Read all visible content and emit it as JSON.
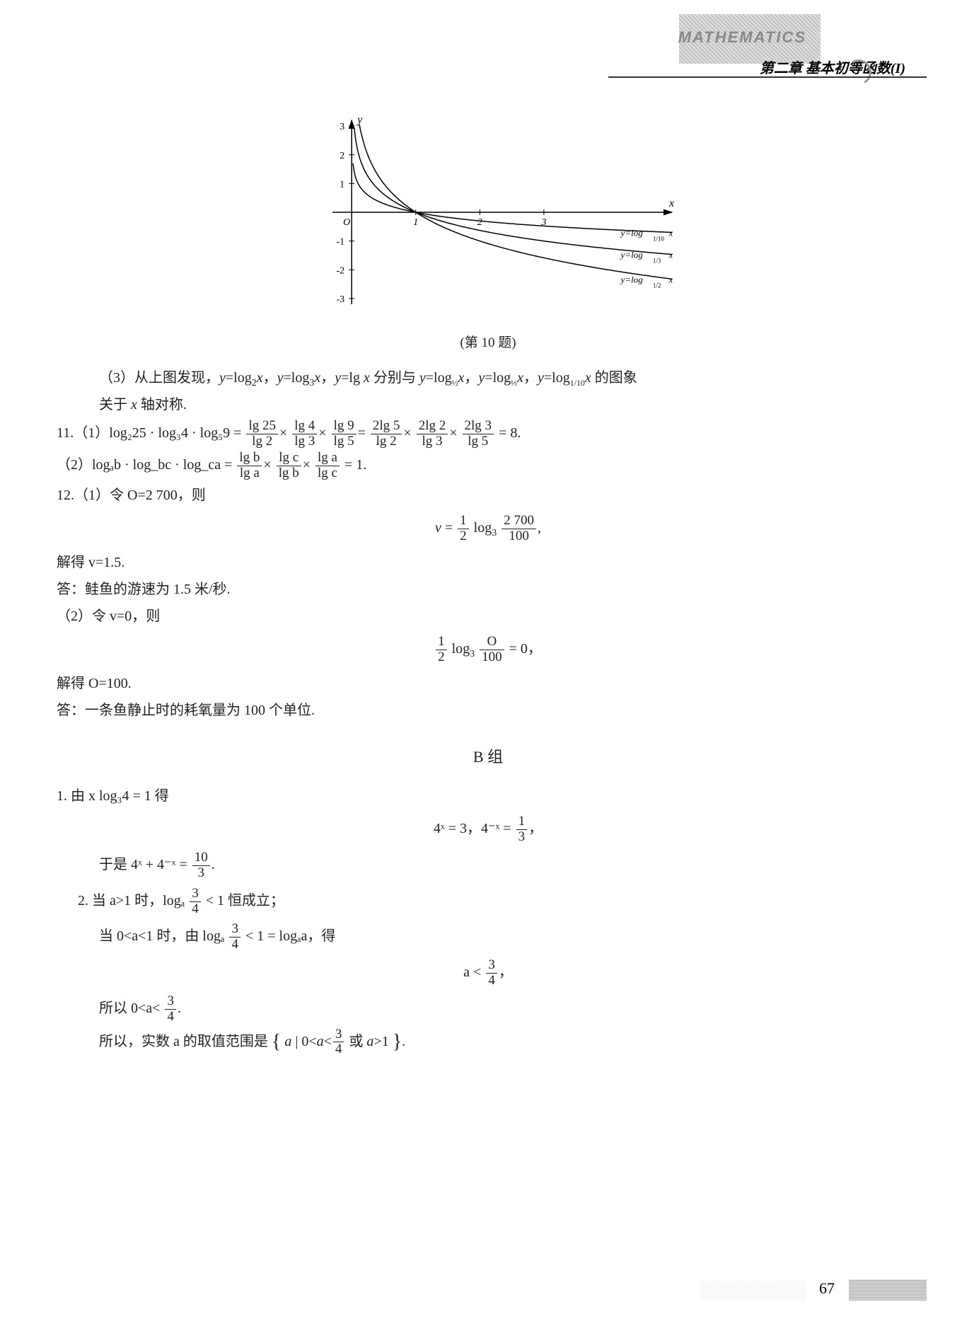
{
  "header": {
    "watermark": "MATHEMATICS",
    "chapter": "第二章  基本初等函数(I)"
  },
  "chart": {
    "type": "line",
    "caption": "(第 10 题)",
    "x_axis_label": "x",
    "y_axis_label": "y",
    "origin_label": "O",
    "xlim": [
      -0.3,
      5
    ],
    "ylim": [
      -3.2,
      3.2
    ],
    "xticks": [
      1,
      2,
      3
    ],
    "yticks": [
      -3,
      -2,
      -1,
      1,
      2,
      3
    ],
    "background_color": "#ffffff",
    "axis_color": "#000000",
    "curve_color": "#000000",
    "line_width": 1.5,
    "tick_fontsize": 14,
    "label_fontsize": 16,
    "series_labels": {
      "top": "y=log_{1/10} x",
      "mid": "y=log_{1/3} x",
      "bot": "y=log_{1/2} x"
    },
    "desc": "Three logarithmic curves with bases 1/2, 1/3, 1/10 reflected below x-axis; all pass through (1,0); positive branch above x-axis on (0,1) rising steeply to +infinity, negative on (1,+inf). log_{1/2} drops fastest, log_{1/10} slowest."
  },
  "problems": {
    "p3": "（3）从上图发现，y=log₂x，y=log₃x，y=lg x 分别与 y=log_{½}x，y=log_{⅓}x，y=log_{1/10}x 的图象关于 x 轴对称.",
    "p11_1_prefix": "11.（1）log₂25 · log₃4 · log₅9 =",
    "p11_1_result": "= 8.",
    "p11_2_prefix": "（2）logₐb · log_bc · log_ca =",
    "p11_2_result": "= 1.",
    "p12_1a": "12.（1）令 O=2 700，则",
    "p12_1b_prefix": "v =",
    "p12_1c": "解得 v=1.5.",
    "p12_1d": "答：鲑鱼的游速为 1.5 米/秒.",
    "p12_2a": "（2）令 v=0，则",
    "p12_2c": "解得 O=100.",
    "p12_2d": "答：一条鱼静止时的耗氧量为 100 个单位.",
    "b_label": "B 组",
    "b1a": "1. 由 x log₃4 = 1 得",
    "b1b": "4ˣ = 3，4⁻ˣ = ",
    "b1c_prefix": "于是 4ˣ + 4⁻ˣ =",
    "b2a_prefix": "2. 当 a>1 时，logₐ",
    "b2a_suffix": "< 1 恒成立；",
    "b2b_prefix": "当 0<a<1 时，由 logₐ",
    "b2b_mid": "< 1 = logₐa，得",
    "b2c_prefix": "a <",
    "b2d_prefix": "所以 0<a<",
    "b2e_prefix": "所以，实数 a 的取值范围是 ",
    "b2e_set_open": "{ a | 0<a<",
    "b2e_set_mid": " 或 a>1 }",
    "period": "."
  },
  "fractions": {
    "lg25_lg2": {
      "n": "lg 25",
      "d": "lg 2"
    },
    "lg4_lg3": {
      "n": "lg 4",
      "d": "lg 3"
    },
    "lg9_lg5": {
      "n": "lg 9",
      "d": "lg 5"
    },
    "2lg5_lg2": {
      "n": "2lg 5",
      "d": "lg 2"
    },
    "2lg2_lg3": {
      "n": "2lg 2",
      "d": "lg 3"
    },
    "2lg3_lg5": {
      "n": "2lg 3",
      "d": "lg 5"
    },
    "lgb_lga": {
      "n": "lg b",
      "d": "lg a"
    },
    "lgc_lgb": {
      "n": "lg c",
      "d": "lg b"
    },
    "lga_lgc": {
      "n": "lg a",
      "d": "lg c"
    },
    "half": {
      "n": "1",
      "d": "2"
    },
    "2700_100": {
      "n": "2 700",
      "d": "100"
    },
    "O_100": {
      "n": "O",
      "d": "100"
    },
    "one_third": {
      "n": "1",
      "d": "3"
    },
    "ten_thirds": {
      "n": "10",
      "d": "3"
    },
    "three_quarters": {
      "n": "3",
      "d": "4"
    }
  },
  "page_number": "67"
}
